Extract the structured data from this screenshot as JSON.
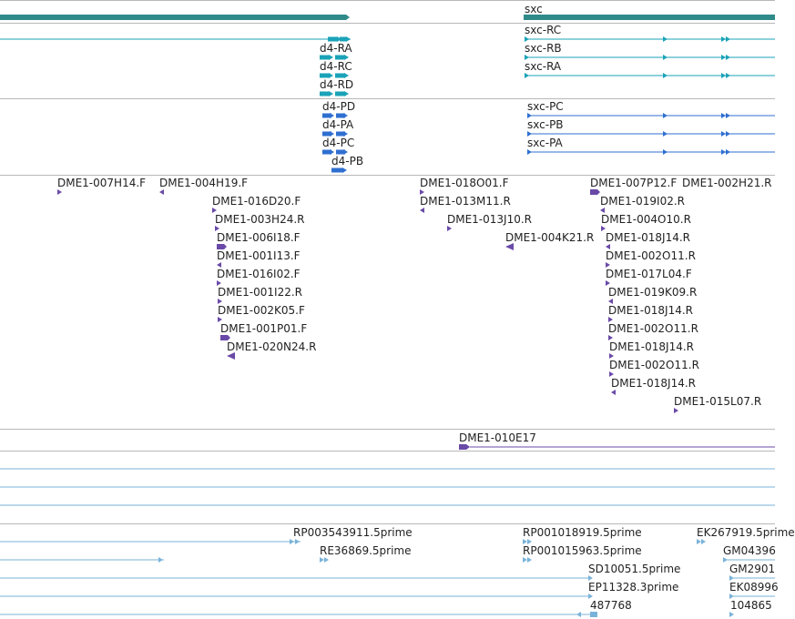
{
  "colors": {
    "gene": "#2f8b8a",
    "transcript_a": "#1aa3b8",
    "transcript_b": "#2f6fd0",
    "clone": "#6a4aa8",
    "est": "#7ab3d9",
    "divider": "#b8b8b8"
  },
  "gene_track": {
    "gene_label": "sxc",
    "transcripts_a": [
      "d4-RA",
      "d4-RC",
      "d4-RD",
      "sxc-RC",
      "sxc-RB",
      "sxc-RA"
    ],
    "transcripts_b": [
      "d4-PD",
      "d4-PA",
      "d4-PC",
      "d4-PB",
      "sxc-PC",
      "sxc-PB",
      "sxc-PA"
    ]
  },
  "clone_track": {
    "clones": [
      "DME1-007H14.F",
      "DME1-004H19.F",
      "DME1-016D20.F",
      "DME1-003H24.R",
      "DME1-006I18.F",
      "DME1-001I13.F",
      "DME1-016I02.F",
      "DME1-001I22.R",
      "DME1-002K05.F",
      "DME1-001P01.F",
      "DME1-020N24.R",
      "DME1-018O01.F",
      "DME1-013M11.R",
      "DME1-013J10.R",
      "DME1-004K21.R",
      "DME1-007P12.F",
      "DME1-002H21.R",
      "DME1-019I02.R",
      "DME1-004O10.R",
      "DME1-018J14.R",
      "DME1-002O11.R",
      "DME1-017L04.F",
      "DME1-019K09.R",
      "DME1-018J14.R",
      "DME1-002O11.R",
      "DME1-018J14.R",
      "DME1-002O11.R",
      "DME1-018J14.R",
      "DME1-015L07.R"
    ]
  },
  "bac_track": {
    "label": "DME1-010E17"
  },
  "est_track": {
    "labels": [
      "RP003543911.5prime",
      "RE36869.5prime",
      "RP001018919.5prime",
      "RP001015963.5prime",
      "SD10051.5prime",
      "EP11328.3prime",
      "487768",
      "EK267919.5prime",
      "GM04396",
      "GM2901",
      "EK08996",
      "104865"
    ]
  }
}
